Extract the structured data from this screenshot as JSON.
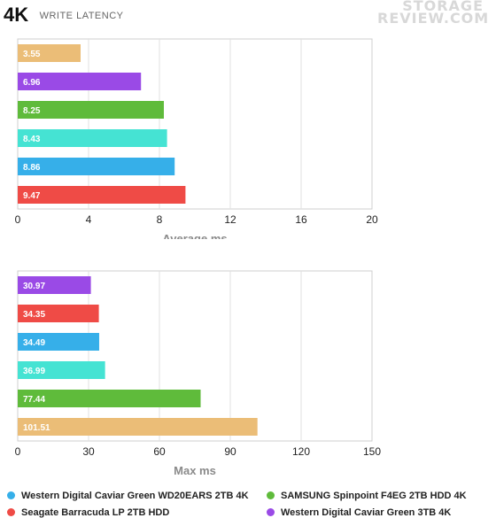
{
  "title": {
    "main": "4K",
    "sub": "WRITE LATENCY"
  },
  "logo": {
    "line1": "STORAGE",
    "line2": "REVIEW.COM"
  },
  "colors": {
    "orange": "#ebbd77",
    "purple": "#9a4ae6",
    "green": "#5fbb3b",
    "teal": "#45e3d3",
    "blue": "#36afe9",
    "red": "#ef4b46"
  },
  "chart_data": [
    {
      "type": "bar",
      "orientation": "horizontal",
      "xlabel": "Average ms",
      "xlim": [
        0,
        20
      ],
      "ticks": [
        0,
        4,
        8,
        12,
        16,
        20
      ],
      "grid": true,
      "bars": [
        {
          "label": "3.55",
          "value": 3.55,
          "color": "#ebbd77"
        },
        {
          "label": "6.96",
          "value": 6.96,
          "color": "#9a4ae6"
        },
        {
          "label": "8.25",
          "value": 8.25,
          "color": "#5fbb3b"
        },
        {
          "label": "8.43",
          "value": 8.43,
          "color": "#45e3d3"
        },
        {
          "label": "8.86",
          "value": 8.86,
          "color": "#36afe9"
        },
        {
          "label": "9.47",
          "value": 9.47,
          "color": "#ef4b46"
        }
      ]
    },
    {
      "type": "bar",
      "orientation": "horizontal",
      "xlabel": "Max ms",
      "xlim": [
        0,
        150
      ],
      "ticks": [
        0,
        30,
        60,
        90,
        120,
        150
      ],
      "grid": true,
      "bars": [
        {
          "label": "30.97",
          "value": 30.97,
          "color": "#9a4ae6"
        },
        {
          "label": "34.35",
          "value": 34.35,
          "color": "#ef4b46"
        },
        {
          "label": "34.49",
          "value": 34.49,
          "color": "#36afe9"
        },
        {
          "label": "36.99",
          "value": 36.99,
          "color": "#45e3d3"
        },
        {
          "label": "77.44",
          "value": 77.44,
          "color": "#5fbb3b"
        },
        {
          "label": "101.51",
          "value": 101.51,
          "color": "#ebbd77"
        }
      ]
    }
  ],
  "legend": [
    {
      "label": "Western Digital Caviar Green WD20EARS 2TB 4K",
      "color": "#36afe9"
    },
    {
      "label": "SAMSUNG Spinpoint F4EG 2TB HDD 4K",
      "color": "#5fbb3b"
    },
    {
      "label": "Seagate Barracuda LP 2TB HDD",
      "color": "#ef4b46"
    },
    {
      "label": "Western Digital Caviar Green 3TB 4K",
      "color": "#9a4ae6"
    }
  ]
}
